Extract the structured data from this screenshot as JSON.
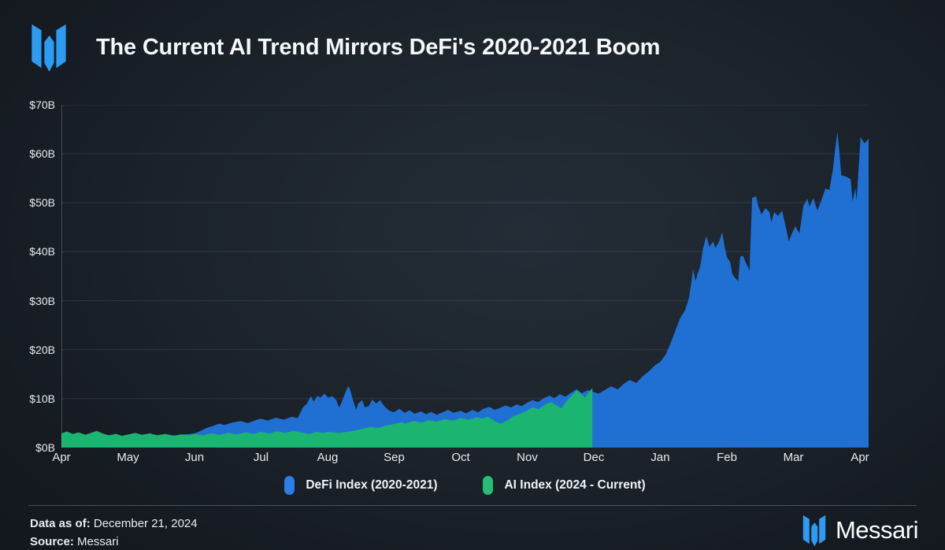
{
  "header": {
    "title": "The Current AI Trend Mirrors DeFi's 2020-2021 Boom"
  },
  "brand": {
    "wordmark": "Messari",
    "logo_color": "#2d9bf0"
  },
  "legend": [
    {
      "label": "DeFi Index (2020-2021)",
      "color": "#2e7de5"
    },
    {
      "label": "AI Index (2024 - Current)",
      "color": "#27bd74"
    }
  ],
  "footer": {
    "data_as_of_label": "Data as of:",
    "data_as_of_value": "December 21, 2024",
    "source_label": "Source:",
    "source_value": "Messari"
  },
  "colors": {
    "background": "#1b222a",
    "gridline": "rgba(160,175,190,0.16)",
    "axis_line": "rgba(160,175,190,0.32)",
    "defi_blue": "#2070d4",
    "ai_green": "#1cb471"
  },
  "chart_data": {
    "type": "area",
    "title": "The Current AI Trend Mirrors DeFi's 2020-2021 Boom",
    "unit": "USD billions (market cap index)",
    "x_axis": {
      "unit": "month",
      "tick_labels": [
        "Apr",
        "May",
        "Jun",
        "Jul",
        "Aug",
        "Sep",
        "Oct",
        "Nov",
        "Dec",
        "Jan",
        "Feb",
        "Mar",
        "Apr"
      ],
      "months_span": 12.13
    },
    "y_axis": {
      "min": 0,
      "max": 70,
      "tick_step": 10,
      "tick_labels": [
        "$0B",
        "$10B",
        "$20B",
        "$30B",
        "$40B",
        "$50B",
        "$60B",
        "$70B"
      ]
    },
    "grid": "horizontal",
    "legend_position": "bottom-center",
    "series": [
      {
        "name": "DeFi Index (2020-2021)",
        "color": "#2070d4",
        "points": [
          [
            0,
            2.3
          ],
          [
            0.14,
            2.6
          ],
          [
            0.26,
            2.2
          ],
          [
            0.38,
            2.5
          ],
          [
            0.5,
            2.8
          ],
          [
            0.62,
            2.4
          ],
          [
            0.73,
            2.1
          ],
          [
            0.85,
            2.4
          ],
          [
            1.01,
            2.2
          ],
          [
            1.15,
            2.5
          ],
          [
            1.27,
            2.3
          ],
          [
            1.38,
            2.6
          ],
          [
            1.5,
            2.3
          ],
          [
            1.62,
            2.6
          ],
          [
            1.74,
            2.4
          ],
          [
            1.86,
            2.7
          ],
          [
            2,
            2.9
          ],
          [
            2.09,
            3.4
          ],
          [
            2.18,
            4
          ],
          [
            2.27,
            4.4
          ],
          [
            2.37,
            4.9
          ],
          [
            2.45,
            4.6
          ],
          [
            2.57,
            5.1
          ],
          [
            2.69,
            5.4
          ],
          [
            2.8,
            5
          ],
          [
            2.92,
            5.6
          ],
          [
            2.99,
            5.9
          ],
          [
            3.1,
            5.5
          ],
          [
            3.22,
            6.1
          ],
          [
            3.34,
            5.7
          ],
          [
            3.46,
            6.3
          ],
          [
            3.55,
            6
          ],
          [
            3.63,
            8.2
          ],
          [
            3.69,
            9
          ],
          [
            3.75,
            10.5
          ],
          [
            3.79,
            9.4
          ],
          [
            3.85,
            10.6
          ],
          [
            3.89,
            10.2
          ],
          [
            3.95,
            11
          ],
          [
            4.01,
            10.2
          ],
          [
            4.07,
            10.5
          ],
          [
            4.13,
            9.7
          ],
          [
            4.17,
            8.2
          ],
          [
            4.2,
            8.9
          ],
          [
            4.26,
            11
          ],
          [
            4.31,
            12.6
          ],
          [
            4.34,
            11.8
          ],
          [
            4.38,
            9.8
          ],
          [
            4.43,
            7.7
          ],
          [
            4.46,
            9
          ],
          [
            4.52,
            9.7
          ],
          [
            4.56,
            8.2
          ],
          [
            4.62,
            8.5
          ],
          [
            4.67,
            9.8
          ],
          [
            4.73,
            9
          ],
          [
            4.79,
            9.7
          ],
          [
            4.85,
            8.5
          ],
          [
            4.92,
            7.6
          ],
          [
            4.99,
            7.2
          ],
          [
            5.08,
            7.9
          ],
          [
            5.16,
            7.1
          ],
          [
            5.23,
            7.6
          ],
          [
            5.31,
            6.9
          ],
          [
            5.4,
            7.4
          ],
          [
            5.48,
            6.8
          ],
          [
            5.56,
            7.3
          ],
          [
            5.64,
            6.7
          ],
          [
            5.73,
            7.2
          ],
          [
            5.81,
            7.7
          ],
          [
            5.89,
            7.1
          ],
          [
            6,
            7.5
          ],
          [
            6.08,
            7
          ],
          [
            6.18,
            7.7
          ],
          [
            6.26,
            7.2
          ],
          [
            6.34,
            7.9
          ],
          [
            6.43,
            8.3
          ],
          [
            6.51,
            7.7
          ],
          [
            6.59,
            8.1
          ],
          [
            6.67,
            8.6
          ],
          [
            6.76,
            8.2
          ],
          [
            6.84,
            8.8
          ],
          [
            6.92,
            8.5
          ],
          [
            6.99,
            9.1
          ],
          [
            7.08,
            9.7
          ],
          [
            7.16,
            9.3
          ],
          [
            7.24,
            10
          ],
          [
            7.33,
            10.6
          ],
          [
            7.41,
            10.1
          ],
          [
            7.49,
            10.9
          ],
          [
            7.57,
            10.4
          ],
          [
            7.66,
            11.2
          ],
          [
            7.74,
            11.9
          ],
          [
            7.82,
            11.1
          ],
          [
            7.91,
            11.7
          ],
          [
            7.99,
            11.4
          ],
          [
            8.07,
            11
          ],
          [
            8.17,
            11.8
          ],
          [
            8.26,
            12.5
          ],
          [
            8.36,
            11.9
          ],
          [
            8.45,
            13
          ],
          [
            8.54,
            13.8
          ],
          [
            8.64,
            13.2
          ],
          [
            8.73,
            14.5
          ],
          [
            8.83,
            15.6
          ],
          [
            8.92,
            16.8
          ],
          [
            9,
            17.5
          ],
          [
            9.08,
            19
          ],
          [
            9.16,
            21.5
          ],
          [
            9.23,
            24
          ],
          [
            9.3,
            26.5
          ],
          [
            9.37,
            28
          ],
          [
            9.43,
            30.5
          ],
          [
            9.47,
            34
          ],
          [
            9.49,
            36.5
          ],
          [
            9.53,
            34
          ],
          [
            9.56,
            35.5
          ],
          [
            9.6,
            37
          ],
          [
            9.64,
            40.5
          ],
          [
            9.69,
            43.2
          ],
          [
            9.74,
            41
          ],
          [
            9.79,
            42.1
          ],
          [
            9.83,
            40.8
          ],
          [
            9.88,
            42
          ],
          [
            9.93,
            44
          ],
          [
            9.96,
            41.5
          ],
          [
            10,
            38.9
          ],
          [
            10.05,
            37.9
          ],
          [
            10.08,
            35.5
          ],
          [
            10.12,
            34.7
          ],
          [
            10.17,
            34
          ],
          [
            10.2,
            38.9
          ],
          [
            10.24,
            39.2
          ],
          [
            10.28,
            37.9
          ],
          [
            10.32,
            36.8
          ],
          [
            10.34,
            36
          ],
          [
            10.38,
            51
          ],
          [
            10.44,
            51.3
          ],
          [
            10.47,
            49.4
          ],
          [
            10.52,
            47.6
          ],
          [
            10.58,
            48.9
          ],
          [
            10.64,
            48.1
          ],
          [
            10.67,
            46
          ],
          [
            10.71,
            48.1
          ],
          [
            10.77,
            47.3
          ],
          [
            10.83,
            48.4
          ],
          [
            10.89,
            44.8
          ],
          [
            10.93,
            42.1
          ],
          [
            10.97,
            43.5
          ],
          [
            11.03,
            45.2
          ],
          [
            11.09,
            43.7
          ],
          [
            11.15,
            49.4
          ],
          [
            11.21,
            50.8
          ],
          [
            11.24,
            49.2
          ],
          [
            11.3,
            51
          ],
          [
            11.36,
            48.4
          ],
          [
            11.42,
            50.5
          ],
          [
            11.48,
            52.9
          ],
          [
            11.54,
            52.6
          ],
          [
            11.59,
            56.5
          ],
          [
            11.62,
            60
          ],
          [
            11.66,
            64.5
          ],
          [
            11.69,
            60.5
          ],
          [
            11.72,
            55.6
          ],
          [
            11.8,
            55.3
          ],
          [
            11.86,
            54.8
          ],
          [
            11.89,
            50.2
          ],
          [
            11.93,
            53
          ],
          [
            11.95,
            50.5
          ],
          [
            12.01,
            63.4
          ],
          [
            12.07,
            62.1
          ],
          [
            12.13,
            63.1
          ]
        ]
      },
      {
        "name": "AI Index (2024 - Current)",
        "color": "#1cb471",
        "points": [
          [
            0,
            2.9
          ],
          [
            0.08,
            3.3
          ],
          [
            0.17,
            2.8
          ],
          [
            0.26,
            3.1
          ],
          [
            0.36,
            2.6
          ],
          [
            0.44,
            3
          ],
          [
            0.53,
            3.4
          ],
          [
            0.62,
            2.9
          ],
          [
            0.71,
            2.5
          ],
          [
            0.82,
            2.8
          ],
          [
            0.91,
            2.4
          ],
          [
            1.01,
            2.7
          ],
          [
            1.11,
            3
          ],
          [
            1.21,
            2.6
          ],
          [
            1.33,
            2.9
          ],
          [
            1.44,
            2.5
          ],
          [
            1.56,
            2.8
          ],
          [
            1.68,
            2.4
          ],
          [
            1.8,
            2.7
          ],
          [
            1.92,
            2.5
          ],
          [
            2,
            2.8
          ],
          [
            2.13,
            2.5
          ],
          [
            2.25,
            2.9
          ],
          [
            2.37,
            2.6
          ],
          [
            2.51,
            3
          ],
          [
            2.63,
            2.7
          ],
          [
            2.77,
            3.1
          ],
          [
            2.89,
            2.8
          ],
          [
            2.99,
            3.2
          ],
          [
            3.12,
            2.9
          ],
          [
            3.24,
            3.3
          ],
          [
            3.36,
            3
          ],
          [
            3.48,
            3.4
          ],
          [
            3.6,
            3.1
          ],
          [
            3.72,
            2.8
          ],
          [
            3.83,
            3.2
          ],
          [
            3.93,
            3
          ],
          [
            4,
            3.2
          ],
          [
            4.17,
            3
          ],
          [
            4.34,
            3.3
          ],
          [
            4.52,
            3.8
          ],
          [
            4.64,
            4.2
          ],
          [
            4.76,
            4
          ],
          [
            4.88,
            4.5
          ],
          [
            4.99,
            4.8
          ],
          [
            5.11,
            5.2
          ],
          [
            5.17,
            4.9
          ],
          [
            5.29,
            5.4
          ],
          [
            5.41,
            5.1
          ],
          [
            5.53,
            5.6
          ],
          [
            5.64,
            5.3
          ],
          [
            5.76,
            5.8
          ],
          [
            5.88,
            5.5
          ],
          [
            6,
            6
          ],
          [
            6.12,
            5.7
          ],
          [
            6.24,
            6.2
          ],
          [
            6.32,
            5.9
          ],
          [
            6.41,
            6.3
          ],
          [
            6.51,
            5.4
          ],
          [
            6.6,
            4.9
          ],
          [
            6.71,
            5.6
          ],
          [
            6.79,
            6.4
          ],
          [
            6.91,
            7
          ],
          [
            6.99,
            7.5
          ],
          [
            7.08,
            8.2
          ],
          [
            7.17,
            7.8
          ],
          [
            7.27,
            8.8
          ],
          [
            7.36,
            9.3
          ],
          [
            7.44,
            8.6
          ],
          [
            7.51,
            8
          ],
          [
            7.6,
            9.6
          ],
          [
            7.68,
            10.8
          ],
          [
            7.75,
            11.7
          ],
          [
            7.81,
            10.9
          ],
          [
            7.87,
            10.2
          ],
          [
            7.93,
            11.4
          ],
          [
            7.98,
            12.2
          ]
        ]
      }
    ]
  }
}
